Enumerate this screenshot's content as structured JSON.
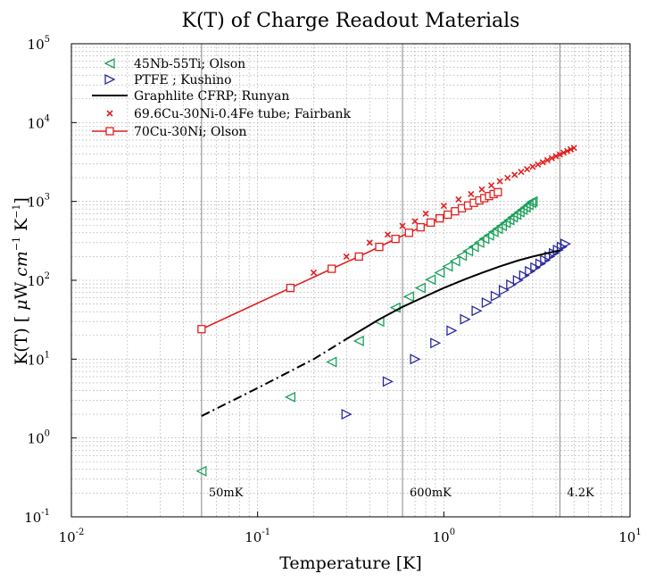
{
  "chart_data": {
    "type": "scatter",
    "title": "K(T) of Charge Readout Materials",
    "xlabel": "Temperature [K]",
    "ylabel_parts": {
      "prefix": "K(T) [ ",
      "mu": "μ",
      "w": "W ",
      "cm": "cm",
      "cm_exp": "−1",
      "k": " K",
      "k_exp": "−1",
      "suffix": "]"
    },
    "xscale": "log",
    "yscale": "log",
    "xlim": [
      0.01,
      10
    ],
    "ylim": [
      0.1,
      100000
    ],
    "x_ticks": [
      {
        "base": "10",
        "exp": "-2",
        "value": 0.01
      },
      {
        "base": "10",
        "exp": "-1",
        "value": 0.1
      },
      {
        "base": "10",
        "exp": "0",
        "value": 1
      },
      {
        "base": "10",
        "exp": "1",
        "value": 10
      }
    ],
    "y_ticks": [
      {
        "base": "10",
        "exp": "-1",
        "value": 0.1
      },
      {
        "base": "10",
        "exp": "0",
        "value": 1
      },
      {
        "base": "10",
        "exp": "1",
        "value": 10
      },
      {
        "base": "10",
        "exp": "2",
        "value": 100
      },
      {
        "base": "10",
        "exp": "3",
        "value": 1000
      },
      {
        "base": "10",
        "exp": "4",
        "value": 10000
      },
      {
        "base": "10",
        "exp": "5",
        "value": 100000
      }
    ],
    "grid": true,
    "legend_position": "top-left",
    "vertical_lines": [
      {
        "x": 0.05,
        "label": "50mK"
      },
      {
        "x": 0.6,
        "label": "600mK"
      },
      {
        "x": 4.2,
        "label": "4.2K"
      }
    ],
    "series": [
      {
        "name": "45Nb-55Ti; Olson",
        "marker": "triangle-left",
        "color": "#1aa05a",
        "points": [
          [
            0.05,
            0.38
          ],
          [
            0.15,
            3.3
          ],
          [
            0.25,
            9.2
          ],
          [
            0.35,
            17
          ],
          [
            0.45,
            30
          ],
          [
            0.55,
            45
          ],
          [
            0.65,
            62
          ],
          [
            0.75,
            80
          ],
          [
            0.85,
            102
          ],
          [
            0.95,
            125
          ],
          [
            1.05,
            150
          ],
          [
            1.15,
            175
          ],
          [
            1.25,
            205
          ],
          [
            1.35,
            235
          ],
          [
            1.45,
            265
          ],
          [
            1.55,
            300
          ],
          [
            1.65,
            335
          ],
          [
            1.75,
            370
          ],
          [
            1.85,
            410
          ],
          [
            1.95,
            450
          ],
          [
            2.05,
            490
          ],
          [
            2.15,
            535
          ],
          [
            2.25,
            580
          ],
          [
            2.35,
            630
          ],
          [
            2.45,
            680
          ],
          [
            2.55,
            730
          ],
          [
            2.65,
            785
          ],
          [
            2.75,
            840
          ],
          [
            2.85,
            900
          ],
          [
            2.95,
            960
          ],
          [
            3.0,
            1000
          ]
        ]
      },
      {
        "name": "PTFE ; Kushino",
        "marker": "triangle-right",
        "color": "#2a2a9a",
        "points": [
          [
            0.3,
            2.0
          ],
          [
            0.5,
            5.2
          ],
          [
            0.7,
            10
          ],
          [
            0.9,
            16
          ],
          [
            1.1,
            23
          ],
          [
            1.3,
            32
          ],
          [
            1.5,
            41
          ],
          [
            1.7,
            52
          ],
          [
            1.9,
            63
          ],
          [
            2.1,
            75
          ],
          [
            2.3,
            88
          ],
          [
            2.5,
            100
          ],
          [
            2.7,
            115
          ],
          [
            2.9,
            130
          ],
          [
            3.1,
            145
          ],
          [
            3.3,
            162
          ],
          [
            3.5,
            180
          ],
          [
            3.7,
            200
          ],
          [
            3.9,
            220
          ],
          [
            4.1,
            242
          ],
          [
            4.3,
            265
          ],
          [
            4.5,
            290
          ]
        ]
      },
      {
        "name": "Graphlite CFRP; Runyan",
        "marker": "line",
        "color": "#000000",
        "line_points": [
          [
            0.3,
            18
          ],
          [
            0.45,
            32
          ],
          [
            0.6,
            46
          ],
          [
            0.8,
            63
          ],
          [
            1.0,
            80
          ],
          [
            1.3,
            103
          ],
          [
            1.6,
            124
          ],
          [
            2.0,
            150
          ],
          [
            2.5,
            178
          ],
          [
            3.0,
            200
          ],
          [
            3.5,
            218
          ],
          [
            4.2,
            240
          ]
        ],
        "dashed_points": [
          [
            0.05,
            1.9
          ],
          [
            0.1,
            4.3
          ],
          [
            0.2,
            10
          ],
          [
            0.3,
            18
          ]
        ]
      },
      {
        "name": "69.6Cu-30Ni-0.4Fe tube; Fairbank",
        "marker": "x",
        "color": "#e02020",
        "points": [
          [
            0.2,
            125
          ],
          [
            0.3,
            200
          ],
          [
            0.4,
            300
          ],
          [
            0.5,
            380
          ],
          [
            0.6,
            490
          ],
          [
            0.7,
            560
          ],
          [
            0.8,
            700
          ],
          [
            1.0,
            880
          ],
          [
            1.2,
            1060
          ],
          [
            1.4,
            1240
          ],
          [
            1.6,
            1420
          ],
          [
            1.8,
            1600
          ],
          [
            2.0,
            1800
          ],
          [
            2.2,
            1990
          ],
          [
            2.4,
            2180
          ],
          [
            2.6,
            2370
          ],
          [
            2.8,
            2560
          ],
          [
            3.0,
            2750
          ],
          [
            3.2,
            2940
          ],
          [
            3.4,
            3140
          ],
          [
            3.6,
            3340
          ],
          [
            3.8,
            3540
          ],
          [
            4.0,
            3740
          ],
          [
            4.2,
            3940
          ],
          [
            4.4,
            4150
          ],
          [
            4.6,
            4360
          ],
          [
            4.8,
            4570
          ],
          [
            5.0,
            4780
          ]
        ]
      },
      {
        "name": "70Cu-30Ni; Olson",
        "marker": "square-line",
        "color": "#e02020",
        "points": [
          [
            0.05,
            24
          ],
          [
            0.15,
            80
          ],
          [
            0.25,
            140
          ],
          [
            0.35,
            200
          ],
          [
            0.45,
            265
          ],
          [
            0.55,
            335
          ],
          [
            0.65,
            400
          ],
          [
            0.75,
            470
          ],
          [
            0.85,
            540
          ],
          [
            0.95,
            610
          ],
          [
            1.05,
            680
          ],
          [
            1.15,
            750
          ],
          [
            1.25,
            820
          ],
          [
            1.35,
            890
          ],
          [
            1.45,
            960
          ],
          [
            1.55,
            1030
          ],
          [
            1.65,
            1100
          ],
          [
            1.75,
            1170
          ],
          [
            1.85,
            1240
          ],
          [
            1.95,
            1310
          ]
        ]
      }
    ]
  }
}
